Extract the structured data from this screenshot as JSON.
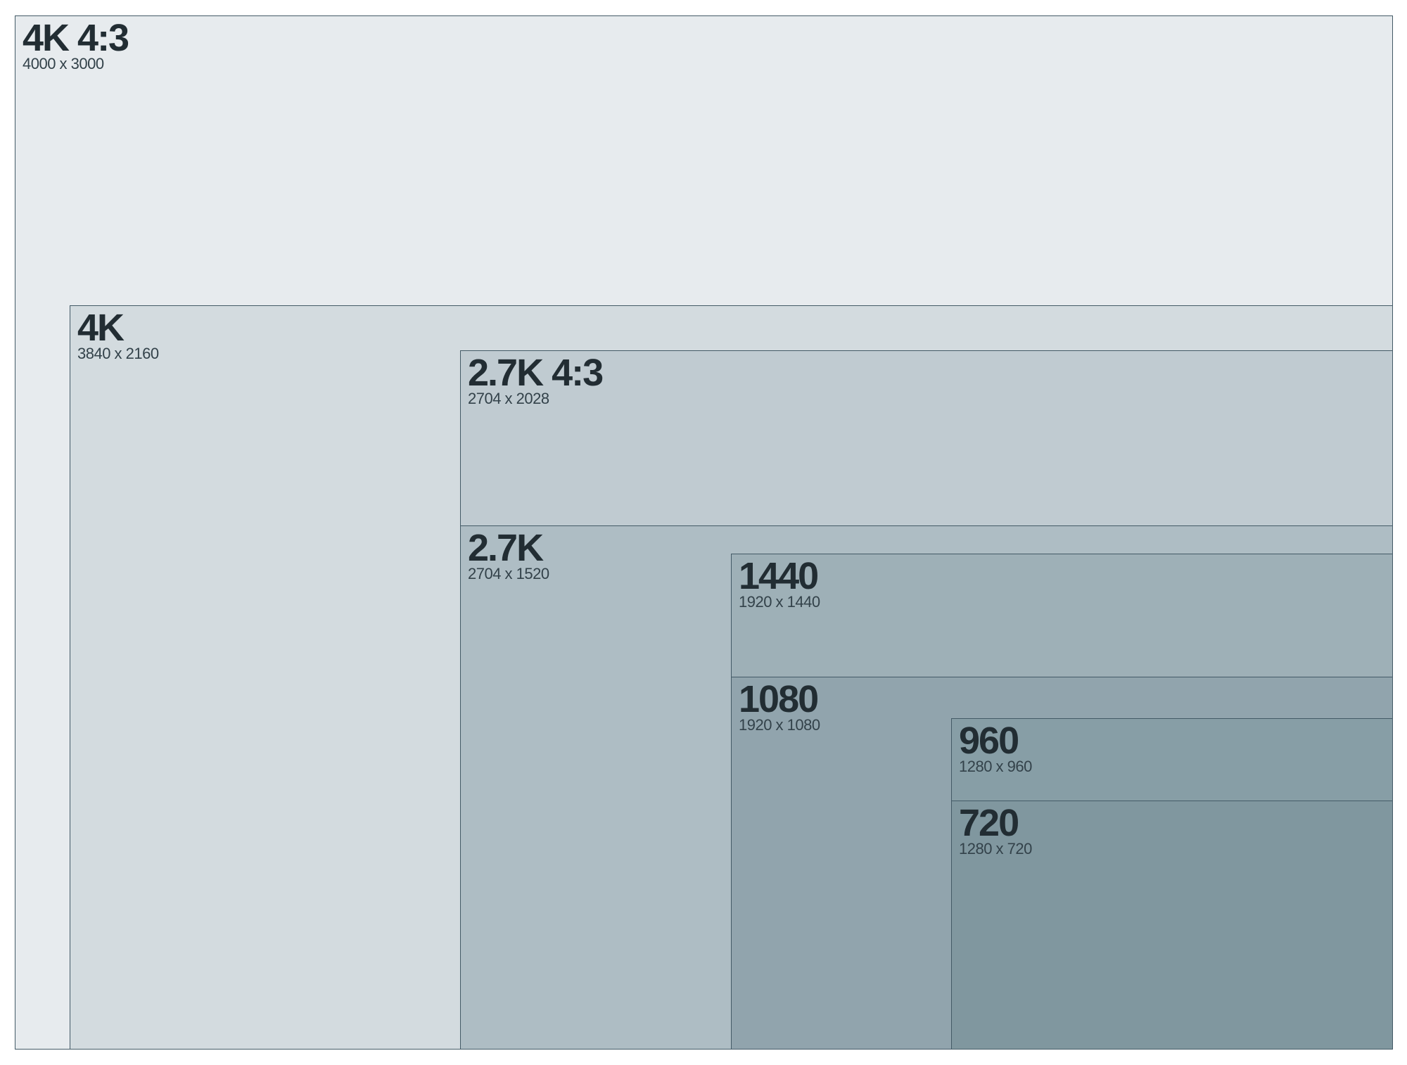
{
  "frames": [
    {
      "id": "4k43",
      "title": "4K 4:3",
      "dims": "4000 x 3000",
      "color": "#e7ebee"
    },
    {
      "id": "4k",
      "title": "4K",
      "dims": "3840 x 2160",
      "color": "#d3dbdf"
    },
    {
      "id": "27k43",
      "title": "2.7K 4:3",
      "dims": "2704 x 2028",
      "color": "#c0cbd1"
    },
    {
      "id": "27k",
      "title": "2.7K",
      "dims": "2704 x 1520",
      "color": "#aebdc4"
    },
    {
      "id": "1440",
      "title": "1440",
      "dims": "1920 x 1440",
      "color": "#9eb0b7"
    },
    {
      "id": "1080",
      "title": "1080",
      "dims": "1920 x 1080",
      "color": "#91a4ad"
    },
    {
      "id": "960",
      "title": "960",
      "dims": "1280 x 960",
      "color": "#879ea6"
    },
    {
      "id": "720",
      "title": "720",
      "dims": "1280 x 720",
      "color": "#80979f"
    }
  ],
  "colors": {
    "border": "#435a66",
    "title_text": "#222d33",
    "dims_text": "#33424a"
  }
}
